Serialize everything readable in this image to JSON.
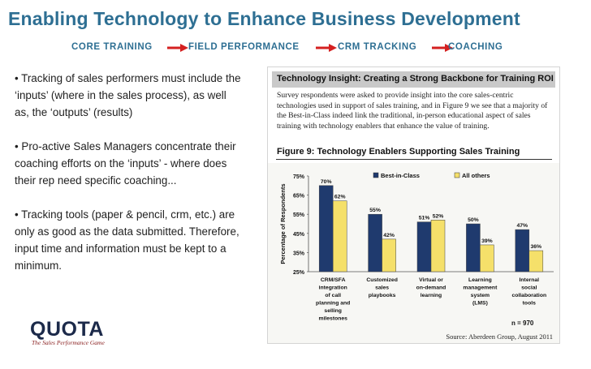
{
  "header": {
    "title": "Enabling Technology to Enhance Business Development"
  },
  "nav": {
    "steps": [
      "CORE TRAINING",
      "FIELD PERFORMANCE",
      "CRM TRACKING",
      "COACHING"
    ],
    "arrow_color": "#d42020"
  },
  "bullets": [
    "• Tracking of sales performers must include the ‘inputs’ (where in the sales process), as well as, the ‘outputs’ (results)",
    "• Pro-active Sales Managers concentrate their coaching efforts on the ‘inputs’ - where does their rep need specific coaching...",
    "• Tracking tools (paper & pencil, crm, etc.) are only as good as the data submitted.  Therefore, input time and information must be kept to a minimum."
  ],
  "logo": {
    "word": "QUOTA",
    "tagline": "The Sales Performance Game"
  },
  "insight": {
    "heading": "Technology Insight: Creating a Strong Backbone for Training ROI",
    "body": "Survey respondents were asked to provide insight into the core sales-centric technologies used in support of sales training, and in Figure 9 we see that a majority of the Best-in-Class indeed link the traditional, in-person educational aspect of sales training with technology enablers that enhance the value of training."
  },
  "figure": {
    "title": "Figure 9: Technology Enablers Supporting Sales Training",
    "note": "n = 970",
    "source": "Source: Aberdeen Group, August 2011"
  },
  "chart_data": {
    "type": "bar",
    "title": "Figure 9: Technology Enablers Supporting Sales Training",
    "ylabel": "Percentage of Respondents",
    "xlabel": "",
    "ylim": [
      25,
      75
    ],
    "yticks": [
      "75%",
      "65%",
      "55%",
      "45%",
      "35%",
      "25%"
    ],
    "legend_position": "top-right",
    "grid": false,
    "categories": [
      [
        "CRM/SFA",
        "integration",
        "of call",
        "planning and",
        "selling",
        "milestones"
      ],
      [
        "Customized",
        "sales",
        "playbooks"
      ],
      [
        "Virtual or",
        "on-demand",
        "learning"
      ],
      [
        "Learning",
        "management",
        "system",
        "(LMS)"
      ],
      [
        "Internal",
        "social",
        "collaboration",
        "tools"
      ]
    ],
    "series": [
      {
        "name": "Best-in-Class",
        "color": "#1f3a6e",
        "values": [
          70,
          55,
          51,
          50,
          47
        ],
        "labels": [
          "70%",
          "55%",
          "51%",
          "50%",
          "47%"
        ]
      },
      {
        "name": "All others",
        "color": "#f5e06a",
        "values": [
          62,
          42,
          52,
          39,
          36
        ],
        "labels": [
          "62%",
          "42%",
          "52%",
          "39%",
          "36%"
        ]
      }
    ]
  }
}
